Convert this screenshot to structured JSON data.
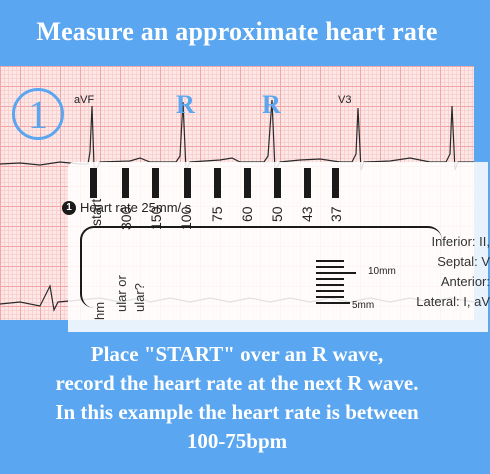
{
  "title": "Measure an approximate heart rate",
  "step": {
    "number": "1"
  },
  "ecg": {
    "lead_left": "aVF",
    "lead_right": "V3",
    "r_labels": [
      "R",
      "R"
    ]
  },
  "ruler": {
    "start_label": "start",
    "scale": [
      "300",
      "150",
      "100",
      "75",
      "60",
      "50",
      "43",
      "37"
    ],
    "legend_number": "1",
    "legend_text": "Heart rate 25mm/ s",
    "leads": [
      "Inferior: II,",
      "Septal: V",
      "Anterior:",
      "Lateral: I, aV"
    ],
    "side_text_1": "hm",
    "side_text_2": "ular or",
    "side_text_3": "ular?",
    "mm_labels": [
      "10mm",
      "5mm"
    ]
  },
  "caption": {
    "lines": [
      "Place \"START\" over an R wave,",
      "record the heart rate at the next R wave.",
      "In this example the heart rate is between",
      "100-75bpm"
    ]
  },
  "colors": {
    "background": "#5aa6f0",
    "ecg_paper": "#fde8e8",
    "grid_major": "#f1a7a7",
    "accent": "#5aa6f0"
  }
}
